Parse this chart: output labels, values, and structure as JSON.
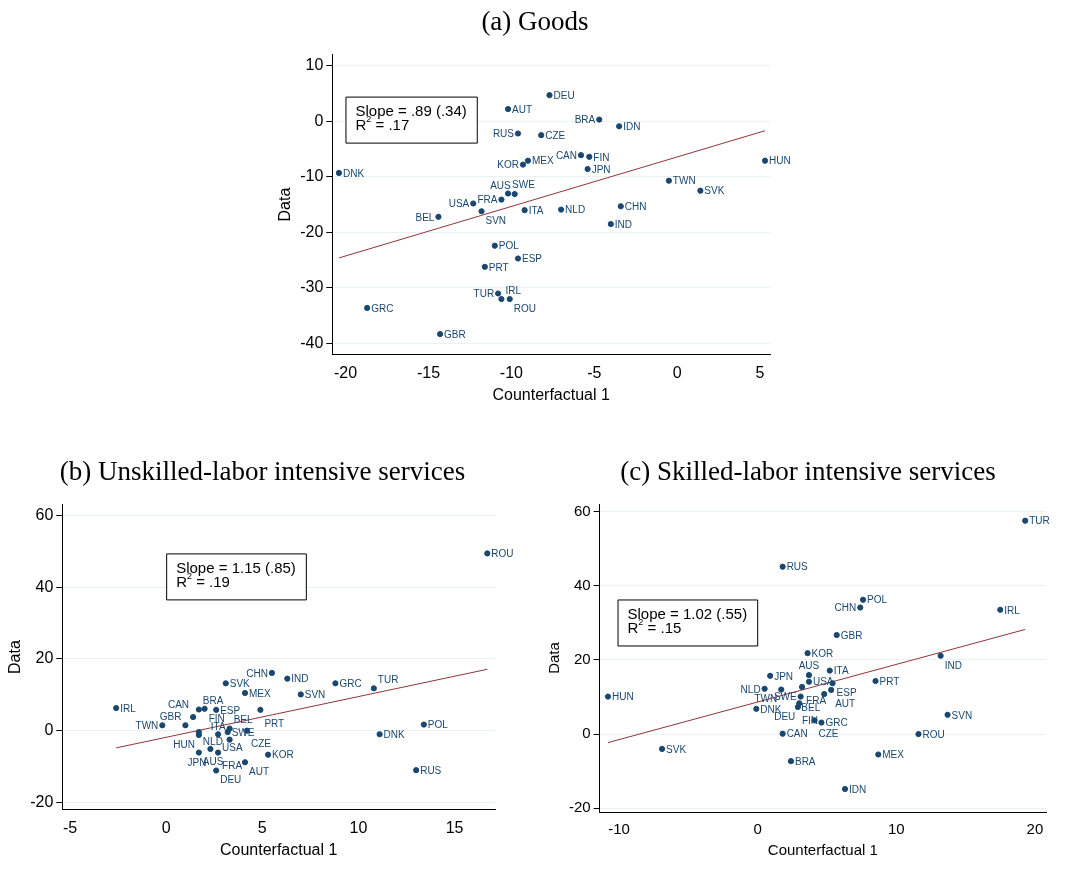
{
  "chart_data": [
    {
      "type": "scatter",
      "title": "(a) Goods",
      "xlabel": "Counterfactual 1",
      "ylabel": "Data",
      "xlim": [
        -20.8,
        5.6
      ],
      "ylim": [
        -42,
        12
      ],
      "xticks": [
        -20,
        -15,
        -10,
        -5,
        0,
        5
      ],
      "yticks": [
        -40,
        -30,
        -20,
        -10,
        0,
        10
      ],
      "grid": "y",
      "marker": "circle",
      "annotations": [
        "Slope = .89 (.34)",
        "R$^{2}$ = .17"
      ],
      "series": [
        {
          "type": "scatter",
          "color": "#1a476f",
          "x": [
            -20.4,
            -18.7,
            -14.3,
            -14.4,
            -12.3,
            -11.8,
            -11.0,
            -11.6,
            -10.8,
            -10.6,
            -10.1,
            -10.6,
            -10.2,
            -9.8,
            -9.2,
            -7.0,
            -9.0,
            -9.3,
            -10.2,
            -9.6,
            -8.2,
            -7.7,
            -4.7,
            -3.5,
            -5.8,
            -5.3,
            -5.4,
            -0.5,
            1.4,
            -3.4,
            -4.0,
            -9.6,
            5.3
          ],
          "values": [
            -9.3,
            -33.6,
            -38.3,
            -17.2,
            -14.8,
            -16.2,
            -22.4,
            -26.2,
            -31.0,
            -32.0,
            -32.0,
            -14.1,
            -13.0,
            -13.1,
            -16.0,
            -15.9,
            -7.1,
            -7.8,
            2.2,
            -2.2,
            -2.5,
            4.7,
            0.3,
            -0.9,
            -6.1,
            -6.4,
            -8.6,
            -10.7,
            -12.5,
            -15.3,
            -18.5,
            -24.7,
            -7.1
          ],
          "value_labels": [
            "DNK",
            "GRC",
            "GBR",
            "BEL",
            "USA",
            "SVN",
            "POL",
            "PRT",
            "TUR",
            "IRL",
            "ROU",
            "FRA",
            "SWE",
            "AUS",
            "ITA",
            "NLD",
            "MEX",
            "KOR",
            "AUT",
            "RUS",
            "CZE",
            "DEU",
            "BRA",
            "IDN",
            "CAN",
            "FIN",
            "JPN",
            "TWN",
            "SVK",
            "CHN",
            "IND",
            "ESP",
            "HUN"
          ]
        },
        {
          "type": "line",
          "color": "#90353b",
          "marker": "none",
          "x": [
            -20.4,
            5.3
          ],
          "values": [
            -24.6,
            -1.7
          ]
        }
      ]
    },
    {
      "type": "scatter",
      "title": "(b) Unskilled-labor intensive services",
      "xlabel": "Counterfactual 1",
      "ylabel": "Data",
      "xlim": [
        -5.4,
        17.1
      ],
      "ylim": [
        -22,
        63
      ],
      "xticks": [
        -5,
        0,
        5,
        10,
        15
      ],
      "yticks": [
        -20,
        0,
        20,
        40,
        60
      ],
      "grid": "y",
      "marker": "circle",
      "annotations": [
        "Slope = 1.15 (.85)",
        "R$^{2}$ = .19"
      ],
      "series": [
        {
          "type": "scatter",
          "color": "#1a476f",
          "x": [
            -2.6,
            -0.2,
            1.0,
            1.4,
            1.7,
            2.0,
            2.6,
            1.7,
            1.7,
            2.7,
            3.3,
            3.2,
            3.3,
            4.2,
            1.7,
            2.3,
            2.7,
            2.6,
            4.1,
            3.1,
            4.1,
            4.9,
            5.5,
            6.3,
            8.8,
            7.0,
            10.8,
            5.3,
            11.1,
            13.4,
            13.0,
            16.7
          ],
          "values": [
            6.3,
            1.5,
            1.5,
            3.8,
            5.9,
            6.1,
            5.8,
            -1.2,
            -0.4,
            -1.0,
            0.6,
            -0.4,
            -2.5,
            0.0,
            -6.1,
            -5.1,
            -6.1,
            -11.1,
            -8.8,
            13.2,
            10.5,
            5.8,
            16.1,
            14.5,
            13.2,
            10.1,
            11.8,
            -6.7,
            -1.0,
            1.7,
            -11.0,
            49.4
          ],
          "value_labels": [
            "IRL",
            "TWN",
            "GBR",
            "CAN",
            "BRA",
            "FIN",
            "ESP",
            "HUN",
            "NLD",
            "USA",
            "BEL",
            "SWE",
            "ITA",
            "CZE",
            "AUS",
            "JPN",
            "FRA",
            "DEU",
            "AUT",
            "SVK",
            "MEX",
            "PRT",
            "CHN",
            "IND",
            "GRC",
            "SVN",
            "TUR",
            "KOR",
            "DNK",
            "POL",
            "RUS",
            "ROU"
          ]
        },
        {
          "type": "line",
          "color": "#90353b",
          "marker": "none",
          "x": [
            -2.6,
            16.7
          ],
          "values": [
            -4.8,
            17.1
          ]
        }
      ]
    },
    {
      "type": "scatter",
      "title": "(c) Skilled-labor intensive services",
      "xlabel": "Counterfactual 1",
      "ylabel": "Data",
      "xlim": [
        -11.4,
        20.8
      ],
      "ylim": [
        -21,
        62
      ],
      "xticks": [
        -10,
        0,
        10,
        20
      ],
      "yticks": [
        -20,
        0,
        20,
        40,
        60
      ],
      "grid": "y",
      "marker": "circle",
      "annotations": [
        "Slope = 1.02 (.55)",
        "R$^{2}$ = .15"
      ],
      "series": [
        {
          "type": "scatter",
          "color": "#1a476f",
          "x": [
            -10.8,
            -6.9,
            1.8,
            0.9,
            0.5,
            -0.1,
            1.8,
            19.3,
            7.6,
            7.4,
            17.5,
            5.7,
            3.6,
            13.2,
            5.2,
            3.7,
            3.7,
            5.4,
            8.5,
            5.3,
            1.7,
            3.2,
            4.8,
            3.1,
            3.0,
            2.9,
            4.1,
            4.6,
            13.7,
            11.6,
            8.7,
            2.4,
            6.3
          ],
          "values": [
            10.1,
            -4.0,
            45.1,
            15.7,
            12.2,
            6.8,
            0.1,
            57.5,
            36.2,
            34.1,
            33.5,
            26.7,
            21.8,
            21.1,
            17.1,
            15.9,
            14.1,
            13.7,
            14.3,
            11.9,
            12.0,
            12.7,
            10.8,
            10.1,
            8.3,
            7.3,
            3.7,
            3.1,
            5.2,
            0.0,
            -5.5,
            -7.3,
            -14.8
          ],
          "value_labels": [
            "HUN",
            "SVK",
            "RUS",
            "JPN",
            "NLD",
            "DNK",
            "CAN",
            "TUR",
            "POL",
            "CHN",
            "IRL",
            "GBR",
            "KOR",
            "IND",
            "ITA",
            "AUS",
            "USA",
            "ESP",
            "PRT",
            "AUT",
            "TWN",
            "FRA",
            "BEL",
            "SWE",
            "DEU",
            "FIN",
            "CZE",
            "GRC",
            "SVN",
            "ROU",
            "MEX",
            "BRA",
            "IDN"
          ]
        },
        {
          "type": "line",
          "color": "#90353b",
          "marker": "none",
          "x": [
            -10.8,
            19.3
          ],
          "values": [
            -2.3,
            28.2
          ]
        }
      ]
    }
  ]
}
